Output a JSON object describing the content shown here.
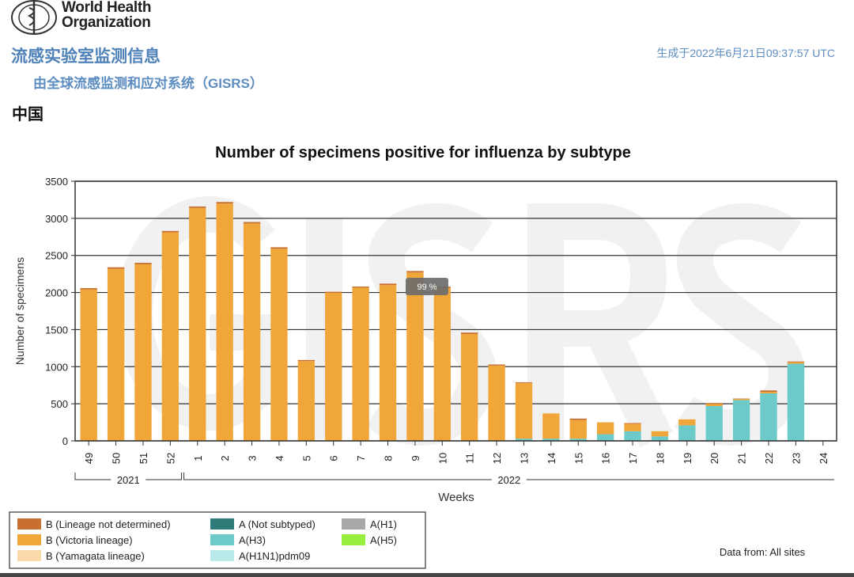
{
  "header": {
    "org_name_line1": "World Health",
    "org_name_line2": "Organization",
    "title": "流感实验室监测信息",
    "subtitle": "由全球流感监测和应对系统（GISRS）",
    "generated": "生成于2022年6月21日09:37:57 UTC",
    "country": "中国"
  },
  "tooltip": "99 %",
  "watermark": "GISRS",
  "data_source": "Data from: All sites",
  "colors": {
    "B_lineage_not_determined": "#c8702f",
    "B_victoria": "#f0a638",
    "B_yamagata": "#f9d9a8",
    "A_not_subtyped": "#2f7d7b",
    "A_H3": "#6ccbc8",
    "A_H1N1pdm09": "#b8eaea",
    "A_H1": "#a8a8a8",
    "A_H5": "#98ee3c"
  },
  "chart_data": {
    "type": "bar",
    "stacked": true,
    "title": "Number of specimens positive for influenza by subtype",
    "xlabel": "Weeks",
    "ylabel": "Number of specimens",
    "ylim": [
      0,
      3500
    ],
    "yticks": [
      0,
      500,
      1000,
      1500,
      2000,
      2500,
      3000,
      3500
    ],
    "grid": true,
    "categories": [
      "49",
      "50",
      "51",
      "52",
      "1",
      "2",
      "3",
      "4",
      "5",
      "6",
      "7",
      "8",
      "9",
      "10",
      "11",
      "12",
      "13",
      "14",
      "15",
      "16",
      "17",
      "18",
      "19",
      "20",
      "21",
      "22",
      "23",
      "24"
    ],
    "year_groups": [
      {
        "label": "2021",
        "weeks": [
          "49",
          "52"
        ]
      },
      {
        "label": "2022",
        "weeks": [
          "1",
          "24"
        ]
      }
    ],
    "series": [
      {
        "name": "A(H3)",
        "color_key": "A_H3",
        "values": [
          0,
          0,
          0,
          0,
          0,
          0,
          0,
          0,
          0,
          0,
          0,
          0,
          0,
          0,
          0,
          0,
          30,
          30,
          30,
          90,
          130,
          60,
          210,
          470,
          550,
          640,
          1040,
          0
        ]
      },
      {
        "name": "B (Victoria lineage)",
        "color_key": "B_victoria",
        "values": [
          2040,
          2320,
          2380,
          2810,
          3140,
          3200,
          2930,
          2590,
          1075,
          1995,
          2065,
          2100,
          2270,
          2065,
          1440,
          1015,
          750,
          340,
          250,
          160,
          100,
          70,
          80,
          30,
          15,
          20,
          20,
          0
        ]
      },
      {
        "name": "B (Lineage not determined)",
        "color_key": "B_lineage_not_determined",
        "values": [
          20,
          20,
          20,
          20,
          20,
          20,
          20,
          20,
          15,
          15,
          15,
          20,
          20,
          15,
          20,
          15,
          10,
          0,
          20,
          0,
          10,
          0,
          0,
          10,
          5,
          20,
          10,
          0
        ]
      }
    ],
    "legend": [
      {
        "label": "B (Lineage not determined)",
        "color_key": "B_lineage_not_determined"
      },
      {
        "label": "B (Victoria lineage)",
        "color_key": "B_victoria"
      },
      {
        "label": "B (Yamagata lineage)",
        "color_key": "B_yamagata"
      },
      {
        "label": "A (Not subtyped)",
        "color_key": "A_not_subtyped"
      },
      {
        "label": "A(H3)",
        "color_key": "A_H3"
      },
      {
        "label": "A(H1N1)pdm09",
        "color_key": "A_H1N1pdm09"
      },
      {
        "label": "A(H1)",
        "color_key": "A_H1"
      },
      {
        "label": "A(H5)",
        "color_key": "A_H5"
      }
    ],
    "legend_position": "bottom-left"
  }
}
